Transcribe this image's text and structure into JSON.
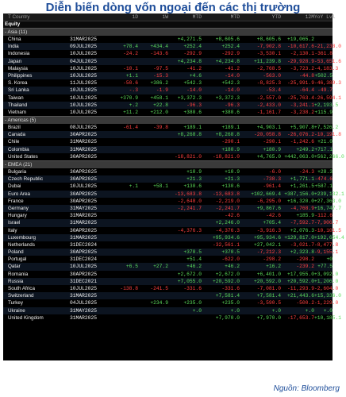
{
  "title": "Diễn biến dòng vốn ngoại đến các thị trường",
  "source": "Nguồn: Bloomberg",
  "header": {
    "country": "T Country",
    "col1": "1D",
    "col2": "1W",
    "col3": "MTD",
    "col4": "MTD",
    "col5": "YTD",
    "col6": "12M",
    "col7": "YoY Lvl"
  },
  "equity_label": "Equity",
  "sections": [
    {
      "label": "- Asia (11)",
      "rows": [
        {
          "n": "China",
          "d": "31MAR2025",
          "v": [
            "",
            "",
            "+4,271.5",
            "+8,605.6",
            "+8,605.6",
            "+19,065.2",
            ""
          ]
        },
        {
          "n": "India",
          "d": "09JUL2025",
          "v": [
            "+78.4",
            "+434.4",
            "+252.4",
            "+252.4",
            "-7,902.8",
            "-10,617.6",
            "-21,238.0"
          ]
        },
        {
          "n": "Indonesia",
          "d": "10JUL2025",
          "v": [
            "-24.2",
            "-143.6",
            "-292.9",
            "-292.9",
            "-3,530.1",
            "-2,130.1",
            "-361.8"
          ]
        },
        {
          "n": "Japan",
          "d": "04JUL2025",
          "v": [
            "",
            "",
            "+4,234.8",
            "+4,234.8",
            "+11,239.8",
            "-29,928.9",
            "-53,651.6"
          ]
        },
        {
          "n": "Malaysia",
          "d": "10JUL2025",
          "v": [
            "-10.1",
            "-97.5",
            "-41.2",
            "-41.2",
            "-2,768.5",
            "-3,723.2",
            "-4,183.3"
          ]
        },
        {
          "n": "Philippines",
          "d": "10JUL2025",
          "v": [
            "+1.1",
            "-15.3",
            "+4.6",
            "-14.0",
            "-563.0",
            "-44.8",
            "+502.5"
          ]
        },
        {
          "n": "S. Korea",
          "d": "11JUL2025",
          "v": [
            "-50.6",
            "+386.2",
            "+542.3",
            "+542.3",
            "-8,825.3",
            "-25,991.9",
            "-46,389.3"
          ]
        },
        {
          "n": "Sri Lanka",
          "d": "10JUL2025",
          "v": [
            "-.3",
            "-1.9",
            "-14.0",
            "-14.0",
            "-53.4",
            "-64.4",
            "-49.7"
          ]
        },
        {
          "n": "Taiwan",
          "d": "10JUL2025",
          "v": [
            "+370.9",
            "+458.1",
            "+3,372.3",
            "+3,372.3",
            "-2,557.0",
            "-25,763.4",
            "-26,594.1"
          ]
        },
        {
          "n": "Thailand",
          "d": "10JUL2025",
          "v": [
            "+.2",
            "+22.8",
            "-96.3",
            "-96.3",
            "-2,433.0",
            "-3,241.1",
            "+2,193.5"
          ]
        },
        {
          "n": "Vietnam",
          "d": "10JUL2025",
          "v": [
            "+11.2",
            "+212.0",
            "+380.6",
            "+380.6",
            "-1,161.7",
            "-3,238.2",
            "+115.9"
          ]
        }
      ]
    },
    {
      "label": "- Americas (5)",
      "rows": [
        {
          "n": "Brazil",
          "d": "08JUL2025",
          "v": [
            "-61.4",
            "-39.8",
            "+189.1",
            "+189.1",
            "+4,903.1",
            "+5,907.8",
            "+7,526.2"
          ]
        },
        {
          "n": "Canada",
          "d": "30APR2025",
          "v": [
            "",
            "",
            "+8,268.8",
            "+8,268.8",
            "-20,058.8",
            "-26,076.2",
            "-10,191.8"
          ]
        },
        {
          "n": "Chile",
          "d": "31MAR2025",
          "v": [
            "",
            "",
            "",
            "-290.1",
            "-290.1",
            "-1,242.6",
            "+21.0"
          ]
        },
        {
          "n": "Colombia",
          "d": "31MAR2025",
          "v": [
            "",
            "",
            "",
            "+180.9",
            "+180.9",
            "+249.2",
            "+717.1"
          ]
        },
        {
          "n": "United States",
          "d": "30APR2025",
          "v": [
            "",
            "",
            "-18,821.0",
            "-18,821.0",
            "+4,765.0",
            "+442,063.0",
            "+562,266.0"
          ]
        }
      ]
    },
    {
      "label": "- EMEA (21)",
      "rows": [
        {
          "n": "Bulgaria",
          "d": "30APR2025",
          "v": [
            "",
            "",
            "+10.9",
            "+10.9",
            "-6.0",
            "-24.3",
            "+28.3"
          ]
        },
        {
          "n": "Czech Republic",
          "d": "30APR2025",
          "v": [
            "",
            "",
            "+21.3",
            "+21.3",
            "-738.3",
            "+1,771.1",
            "-474.6"
          ]
        },
        {
          "n": "Dubai",
          "d": "10JUL2025",
          "v": [
            "+.1",
            "+58.1",
            "+130.6",
            "+130.6",
            "-961.4",
            "+1,261.5",
            "+587.1"
          ]
        },
        {
          "n": "Euro Area",
          "d": "30APR2025",
          "v": [
            "",
            "",
            "-13,683.8",
            "-13,683.8",
            "+102,669.4",
            "+387,156.0",
            "+239,132.1"
          ]
        },
        {
          "n": "France",
          "d": "30APR2025",
          "v": [
            "",
            "",
            "-2,648.0",
            "-2,219.0",
            "-6,295.0",
            "+16,320.0",
            "+27,363.0"
          ]
        },
        {
          "n": "Germany",
          "d": "31MAY2025",
          "v": [
            "",
            "",
            "-2,241.7",
            "-2,241.7",
            "+9,867.6",
            "-4,768.9",
            "+16,747.7"
          ]
        },
        {
          "n": "Hungary",
          "d": "31MAR2025",
          "v": [
            "",
            "",
            "",
            "-42.6",
            "-42.6",
            "+185.9",
            "-112.6"
          ]
        },
        {
          "n": "Israel",
          "d": "31MAR2025",
          "v": [
            "",
            "",
            "",
            "+2,246.0",
            "+705.4",
            "-7,592.7",
            "-7,906.7"
          ]
        },
        {
          "n": "Italy",
          "d": "30APR2025",
          "v": [
            "",
            "",
            "-4,376.3",
            "-4,376.3",
            "-3,916.3",
            "+2,076.3",
            "-10,101.5"
          ]
        },
        {
          "n": "Luxembourg",
          "d": "31MAR2025",
          "v": [
            "",
            "",
            "",
            "+95,934.6",
            "+95,934.6",
            "+129,817.0",
            "+192,654.4"
          ]
        },
        {
          "n": "Netherlands",
          "d": "31DEC2024",
          "v": [
            "",
            "",
            "",
            "-32,561.1",
            "+27,042.1",
            "-3,021.7",
            "-8,477.8"
          ]
        },
        {
          "n": "Poland",
          "d": "30APR2025",
          "v": [
            "",
            "",
            "+370.5",
            "+370.5",
            "-7,212.3",
            "+2,323.8",
            "-9,155.1"
          ]
        },
        {
          "n": "Portugal",
          "d": "31DEC2024",
          "v": [
            "",
            "",
            "+51.4",
            "-622.0",
            "-298.2",
            "-298.2",
            "+0"
          ]
        },
        {
          "n": "Qatar",
          "d": "10JUL2025",
          "v": [
            "+6.5",
            "+27.2",
            "+46.2",
            "+46.2",
            "+16.2",
            "-239.2",
            "+77.5"
          ]
        },
        {
          "n": "Romania",
          "d": "30APR2025",
          "v": [
            "",
            "",
            "+2,672.0",
            "+2,672.0",
            "+6,401.0",
            "+17,955.0",
            "+3,092.0"
          ]
        },
        {
          "n": "Russia",
          "d": "31DEC2021",
          "v": [
            "",
            "",
            "+7,055.0",
            "+20,592.0",
            "+20,592.0",
            "+20,592.0",
            "+1,206.0"
          ]
        },
        {
          "n": "South Africa",
          "d": "10JUL2025",
          "v": [
            "-138.8",
            "-241.5",
            "-331.6",
            "-331.6",
            "-7,081.0",
            "-11,293.9",
            "-2,604.0"
          ]
        },
        {
          "n": "Switzerland",
          "d": "31MAR2025",
          "v": [
            "",
            "",
            "",
            "+7,581.4",
            "+7,581.4",
            "+21,443.6",
            "+15,336.0"
          ]
        },
        {
          "n": "Turkey",
          "d": "04JUL2025",
          "v": [
            "",
            "+234.9",
            "+235.0",
            "+235.0",
            "-3,590.5",
            "-500.2",
            "-1,229.0"
          ]
        },
        {
          "n": "Ukraine",
          "d": "31MAY2025",
          "v": [
            "",
            "",
            "+.0",
            "+.0",
            "+.0",
            "+.0",
            "+.0"
          ]
        },
        {
          "n": "United Kingdom",
          "d": "31MAR2025",
          "v": [
            "",
            "",
            "",
            "+7,970.0",
            "+7,970.0",
            "-17,653.7",
            "+10,185.1"
          ]
        }
      ]
    }
  ]
}
